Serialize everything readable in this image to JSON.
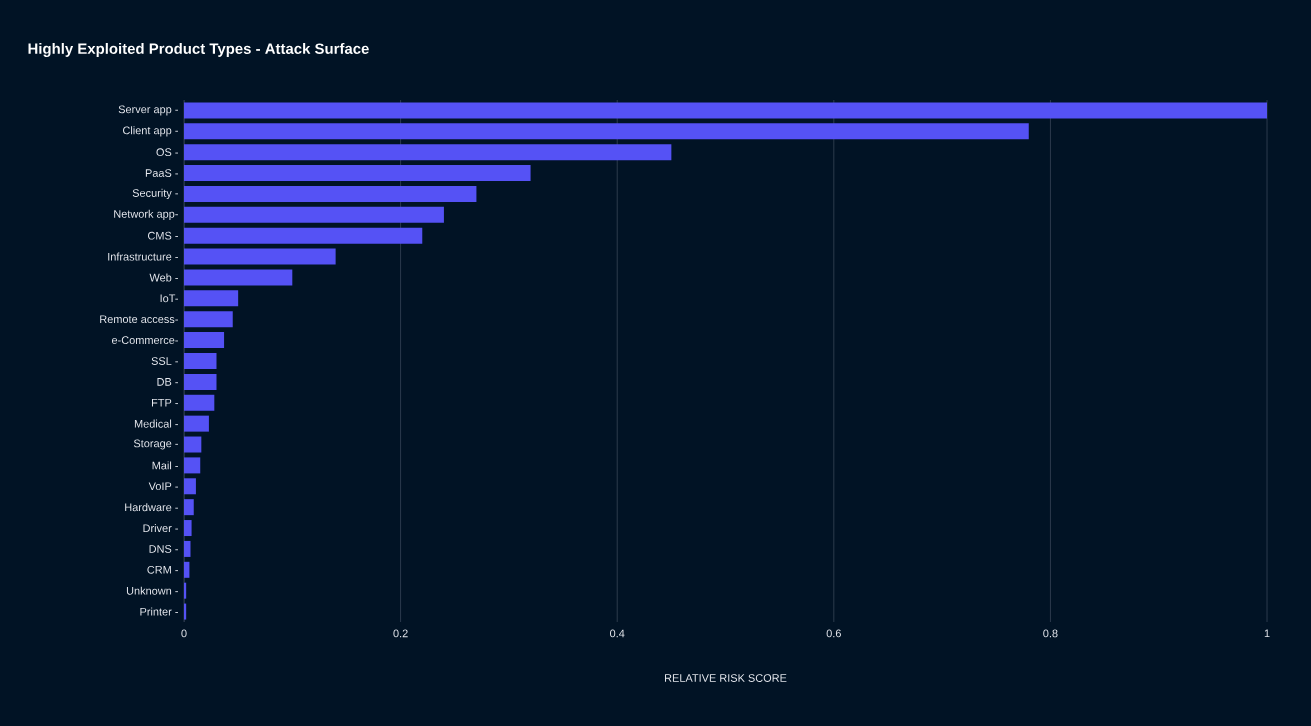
{
  "chart_data": {
    "type": "bar",
    "orientation": "horizontal",
    "title": "Highly Exploited Product Types - Attack Surface",
    "xlabel": "RELATIVE RISK SCORE",
    "categories": [
      "Server app -",
      "Client app -",
      "OS -",
      "PaaS -",
      "Security -",
      "Network app-",
      "CMS -",
      "Infrastructure -",
      "Web -",
      "IoT-",
      "Remote access-",
      "e-Commerce-",
      "SSL -",
      "DB -",
      "FTP -",
      "Medical -",
      "Storage -",
      "Mail -",
      "VoIP -",
      "Hardware -",
      "Driver -",
      "DNS -",
      "CRM -",
      "Unknown -",
      "Printer -"
    ],
    "values": [
      1.0,
      0.78,
      0.45,
      0.32,
      0.27,
      0.24,
      0.22,
      0.14,
      0.1,
      0.05,
      0.045,
      0.037,
      0.03,
      0.03,
      0.028,
      0.023,
      0.016,
      0.015,
      0.011,
      0.009,
      0.007,
      0.006,
      0.005,
      0.002,
      0.002
    ],
    "color": "#5552f5",
    "xlim": [
      0,
      1
    ],
    "xticks": [
      0,
      0.2,
      0.4,
      0.6,
      0.8,
      1
    ],
    "grid": "x"
  }
}
